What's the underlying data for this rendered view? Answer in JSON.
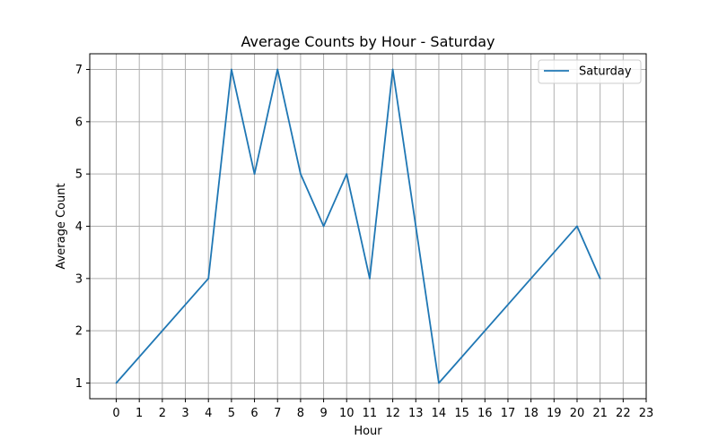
{
  "chart_data": {
    "type": "line",
    "title": "Average Counts by Hour - Saturday",
    "xlabel": "Hour",
    "ylabel": "Average Count",
    "xticks": [
      0,
      1,
      2,
      3,
      4,
      5,
      6,
      7,
      8,
      9,
      10,
      11,
      12,
      13,
      14,
      15,
      16,
      17,
      18,
      19,
      20,
      21,
      22,
      23
    ],
    "yticks": [
      1,
      2,
      3,
      4,
      5,
      6,
      7
    ],
    "xlim": [
      -1.15,
      23.0
    ],
    "ylim": [
      0.7,
      7.3
    ],
    "grid": true,
    "legend_position": "top-right",
    "series": [
      {
        "name": "Saturday",
        "color": "#1f77b4",
        "x": [
          0,
          4,
          5,
          6,
          7,
          8,
          9,
          10,
          11,
          12,
          14,
          20,
          21
        ],
        "y": [
          1,
          3,
          7,
          5,
          7,
          5,
          4,
          5,
          3,
          7,
          1,
          4,
          3
        ]
      }
    ]
  }
}
